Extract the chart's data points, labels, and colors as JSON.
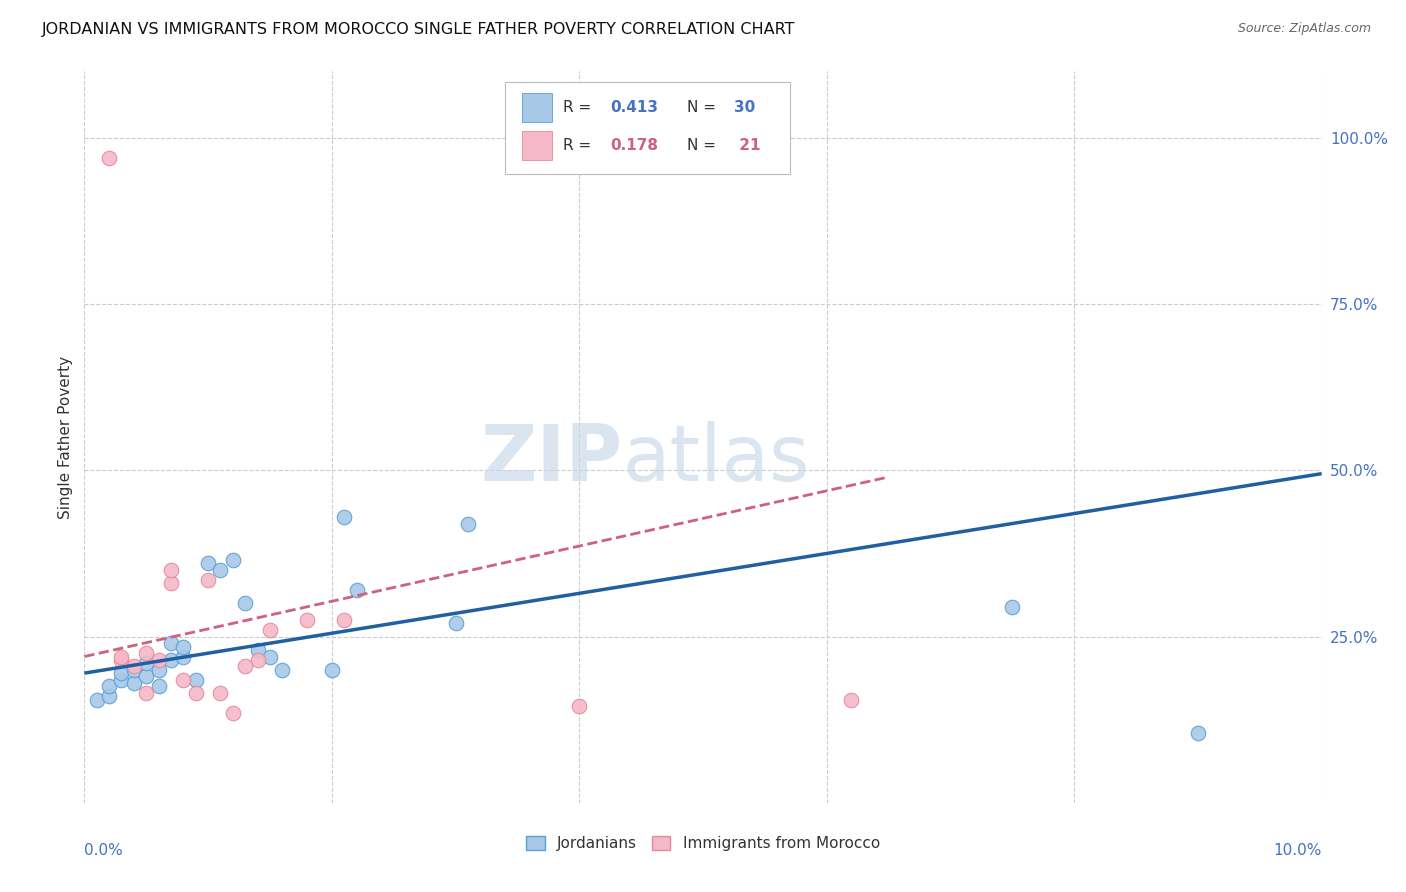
{
  "title": "JORDANIAN VS IMMIGRANTS FROM MOROCCO SINGLE FATHER POVERTY CORRELATION CHART",
  "source": "Source: ZipAtlas.com",
  "ylabel": "Single Father Poverty",
  "xlim": [
    0.0,
    0.1
  ],
  "ylim": [
    0.0,
    1.1
  ],
  "color_blue": "#a8c8e8",
  "color_pink": "#f4b8c8",
  "color_blue_edge": "#5a9fd4",
  "color_pink_edge": "#e8889a",
  "color_line_blue": "#2060a0",
  "color_line_pink": "#d06080",
  "watermark_zip": "ZIP",
  "watermark_atlas": "atlas",
  "jordanians_x": [
    0.001,
    0.002,
    0.002,
    0.003,
    0.003,
    0.004,
    0.004,
    0.005,
    0.005,
    0.006,
    0.006,
    0.007,
    0.007,
    0.008,
    0.008,
    0.009,
    0.01,
    0.011,
    0.012,
    0.013,
    0.014,
    0.015,
    0.016,
    0.02,
    0.021,
    0.022,
    0.03,
    0.031,
    0.075,
    0.09
  ],
  "jordanians_y": [
    0.155,
    0.16,
    0.175,
    0.185,
    0.195,
    0.18,
    0.2,
    0.19,
    0.21,
    0.175,
    0.2,
    0.215,
    0.24,
    0.22,
    0.235,
    0.185,
    0.36,
    0.35,
    0.365,
    0.3,
    0.23,
    0.22,
    0.2,
    0.2,
    0.43,
    0.32,
    0.27,
    0.42,
    0.295,
    0.105
  ],
  "morocco_x": [
    0.002,
    0.003,
    0.003,
    0.004,
    0.005,
    0.005,
    0.006,
    0.007,
    0.007,
    0.008,
    0.009,
    0.01,
    0.011,
    0.012,
    0.013,
    0.014,
    0.015,
    0.018,
    0.021,
    0.04,
    0.062
  ],
  "morocco_y": [
    0.97,
    0.215,
    0.22,
    0.205,
    0.165,
    0.225,
    0.215,
    0.33,
    0.35,
    0.185,
    0.165,
    0.335,
    0.165,
    0.135,
    0.205,
    0.215,
    0.26,
    0.275,
    0.275,
    0.145,
    0.155
  ],
  "trend_blue_x0": 0.0,
  "trend_blue_y0": 0.195,
  "trend_blue_x1": 0.1,
  "trend_blue_y1": 0.495,
  "trend_pink_x0": 0.0,
  "trend_pink_y0": 0.22,
  "trend_pink_x1": 0.065,
  "trend_pink_y1": 0.49
}
